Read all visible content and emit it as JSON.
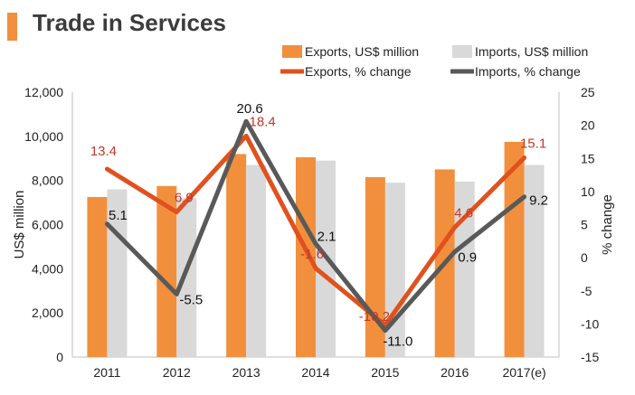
{
  "header": {
    "title": "Trade in Services"
  },
  "chart_data": {
    "type": "bar",
    "title": "Trade in Services",
    "categories": [
      "2011",
      "2012",
      "2013",
      "2014",
      "2015",
      "2016",
      "2017(e)"
    ],
    "ylabel": "US$ million",
    "y2label": "% change",
    "ylim": [
      0,
      12000
    ],
    "y2lim": [
      -15,
      25
    ],
    "yticks": [
      "0",
      "2,000",
      "4,000",
      "6,000",
      "8,000",
      "10,000",
      "12,000"
    ],
    "y2ticks": [
      "-15",
      "-10",
      "-5",
      "0",
      "5",
      "10",
      "15",
      "20",
      "25"
    ],
    "legend_position": "top-right",
    "grid": false,
    "series": [
      {
        "name": "Exports, US$ million",
        "kind": "bar",
        "axis": "left",
        "color": "#f28f3c",
        "values": [
          7250,
          7750,
          9200,
          9050,
          8150,
          8500,
          9750
        ]
      },
      {
        "name": "Imports, US$ million",
        "kind": "bar",
        "axis": "left",
        "color": "#d9d9d9",
        "values": [
          7600,
          7200,
          8700,
          8900,
          7900,
          7950,
          8700
        ]
      },
      {
        "name": "Exports, % change",
        "kind": "line",
        "axis": "right",
        "color": "#e0511e",
        "values": [
          13.4,
          6.9,
          18.4,
          -1.6,
          -10.2,
          4.6,
          15.1
        ],
        "labels": [
          "13.4",
          "6.9",
          "18.4",
          "-1.6",
          "-10.2",
          "4.6",
          "15.1"
        ],
        "label_color": "#c0392b"
      },
      {
        "name": "Imports, % change",
        "kind": "line",
        "axis": "right",
        "color": "#595959",
        "values": [
          5.1,
          -5.5,
          20.6,
          2.1,
          -11.0,
          0.9,
          9.2
        ],
        "labels": [
          "5.1",
          "-5.5",
          "20.6",
          "2.1",
          "-11.0",
          "0.9",
          "9.2"
        ],
        "label_color": "#111111"
      }
    ]
  }
}
